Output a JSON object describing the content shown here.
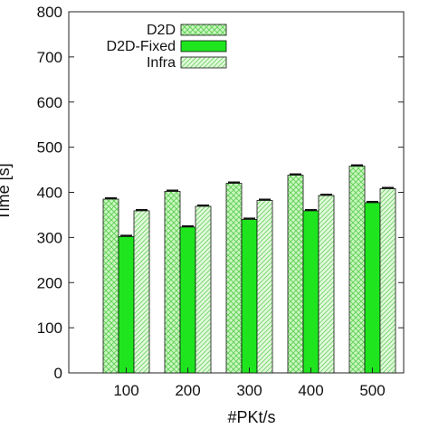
{
  "chart_data": {
    "type": "bar",
    "title": "",
    "xlabel": "#PKt/s",
    "ylabel": "Time [s]",
    "ylim": [
      0,
      800
    ],
    "yticks": [
      "0",
      "100",
      "200",
      "300",
      "400",
      "500",
      "600",
      "700",
      "800"
    ],
    "categories": [
      "100",
      "200",
      "300",
      "400",
      "500"
    ],
    "series": [
      {
        "name": "D2D",
        "values": [
          385,
          402,
          420,
          438,
          458
        ],
        "color": "#bff5b4",
        "pattern": "crosshatch"
      },
      {
        "name": "D2D-Fixed",
        "values": [
          302,
          323,
          340,
          359,
          377
        ],
        "color": "#1fe51f",
        "pattern": "solid"
      },
      {
        "name": "Infra",
        "values": [
          359,
          369,
          382,
          393,
          408
        ],
        "color": "#bff5b4",
        "pattern": "diagonal"
      }
    ],
    "legend_position": "top-right",
    "grid": false
  }
}
